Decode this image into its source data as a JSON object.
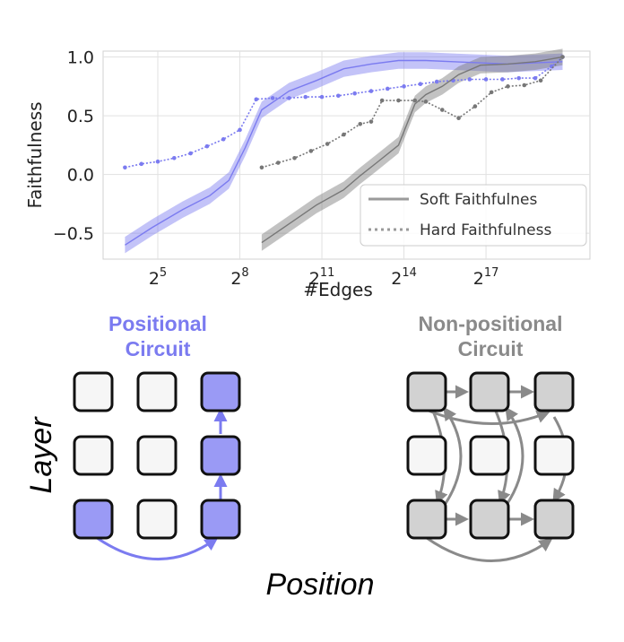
{
  "chart_data": {
    "type": "line",
    "xlabel": "#Edges",
    "ylabel": "Faithfulness",
    "xscale": "log2",
    "xlim_log2": [
      3.0,
      20.8
    ],
    "ylim": [
      -0.72,
      1.05
    ],
    "x_ticks": [
      {
        "base": "2",
        "exp": "5",
        "log2": 5
      },
      {
        "base": "2",
        "exp": "8",
        "log2": 8
      },
      {
        "base": "2",
        "exp": "11",
        "log2": 11
      },
      {
        "base": "2",
        "exp": "14",
        "log2": 14
      },
      {
        "base": "2",
        "exp": "17",
        "log2": 17
      }
    ],
    "y_ticks": [
      {
        "label": "1.0",
        "value": 1.0
      },
      {
        "label": "0.5",
        "value": 0.5
      },
      {
        "label": "0.0",
        "value": 0.0
      },
      {
        "label": "−0.5",
        "value": -0.5
      }
    ],
    "grid": true,
    "legend_position": "lower-right",
    "legend": [
      {
        "label": "Soft Faithfulnes",
        "style": "solid"
      },
      {
        "label": "Hard Faithfulness",
        "style": "dotted"
      }
    ],
    "series": [
      {
        "name": "Positional soft faithfulness",
        "color": "#7b7bf0",
        "style": "solid",
        "band": 0.07,
        "log2_x": [
          3.8,
          4.8,
          5.9,
          6.9,
          7.6,
          8.2,
          8.8,
          9.8,
          10.8,
          11.8,
          12.8,
          13.8,
          14.8,
          15.8,
          16.8,
          17.8,
          18.8,
          19.8
        ],
        "y": [
          -0.6,
          -0.45,
          -0.3,
          -0.18,
          -0.05,
          0.23,
          0.55,
          0.71,
          0.8,
          0.9,
          0.94,
          0.97,
          0.97,
          0.96,
          0.95,
          0.94,
          0.95,
          0.96
        ]
      },
      {
        "name": "Positional hard faithfulness",
        "color": "#7b7bf0",
        "style": "dotted",
        "log2_x": [
          3.8,
          4.4,
          5.0,
          5.6,
          6.2,
          6.8,
          7.4,
          8.0,
          8.6,
          9.2,
          9.8,
          10.4,
          11.0,
          11.6,
          12.2,
          12.8,
          13.4,
          14.0,
          14.6,
          15.2,
          15.8,
          16.4,
          17.0,
          17.6,
          18.2,
          18.8,
          19.4,
          19.8
        ],
        "y": [
          0.06,
          0.09,
          0.11,
          0.14,
          0.18,
          0.24,
          0.3,
          0.38,
          0.64,
          0.65,
          0.65,
          0.66,
          0.66,
          0.67,
          0.69,
          0.71,
          0.73,
          0.75,
          0.77,
          0.79,
          0.8,
          0.81,
          0.81,
          0.81,
          0.82,
          0.82,
          0.92,
          1.0
        ]
      },
      {
        "name": "Non-positional soft faithfulness",
        "color": "#777777",
        "style": "solid",
        "band": 0.07,
        "log2_x": [
          8.8,
          9.8,
          10.8,
          11.8,
          12.4,
          13.0,
          13.8,
          14.4,
          14.8,
          15.4,
          16.0,
          16.8,
          17.8,
          18.8,
          19.8
        ],
        "y": [
          -0.58,
          -0.42,
          -0.26,
          -0.13,
          -0.01,
          0.1,
          0.25,
          0.6,
          0.68,
          0.75,
          0.85,
          0.93,
          0.94,
          0.96,
          1.0
        ]
      },
      {
        "name": "Non-positional hard faithfulness",
        "color": "#777777",
        "style": "dotted",
        "log2_x": [
          8.8,
          9.4,
          10.0,
          10.6,
          11.2,
          11.8,
          12.4,
          12.8,
          13.2,
          13.8,
          14.4,
          14.8,
          15.4,
          16.0,
          16.6,
          17.2,
          17.8,
          18.4,
          19.0,
          19.8
        ],
        "y": [
          0.06,
          0.1,
          0.14,
          0.2,
          0.26,
          0.34,
          0.43,
          0.45,
          0.63,
          0.63,
          0.63,
          0.62,
          0.55,
          0.48,
          0.58,
          0.7,
          0.75,
          0.76,
          0.8,
          1.0
        ]
      }
    ]
  },
  "diagram": {
    "position_label": "Position",
    "layer_label": "Layer",
    "positional": {
      "title_line1": "Positional",
      "title_line2": "Circuit",
      "color": "#7b7bf0",
      "fill": "#9a9af5"
    },
    "non_positional": {
      "title_line1": "Non-positional",
      "title_line2": "Circuit",
      "color": "#8a8a8a",
      "fill": "#d2d2d2"
    },
    "empty_node_fill": "#f6f6f6"
  }
}
